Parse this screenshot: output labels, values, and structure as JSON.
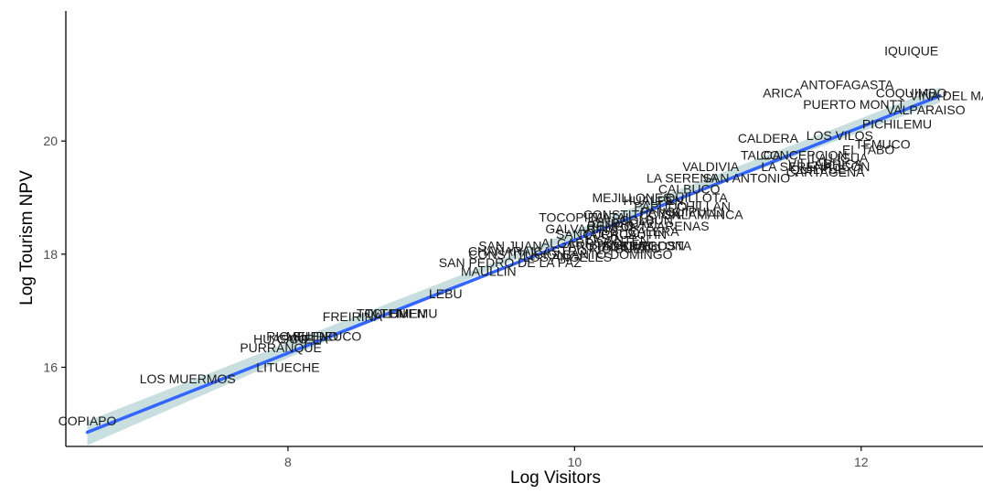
{
  "chart_data": {
    "type": "scatter",
    "xlabel": "Log Visitors",
    "ylabel": "Log Tourism NPV",
    "xlim": [
      6.45,
      12.85
    ],
    "ylim": [
      14.6,
      22.3
    ],
    "x_ticks": [
      8,
      10,
      12
    ],
    "y_ticks": [
      16,
      18,
      20
    ],
    "grid": false,
    "point_style": "text-labels",
    "points": [
      {
        "label": "IQUIQUE",
        "x": 12.35,
        "y": 21.6
      },
      {
        "label": "ANTOFAGASTA",
        "x": 11.9,
        "y": 21.0
      },
      {
        "label": "ARICA",
        "x": 11.45,
        "y": 20.85
      },
      {
        "label": "COQUIMBO",
        "x": 12.35,
        "y": 20.85
      },
      {
        "label": "VIÑA DEL MAR",
        "x": 12.65,
        "y": 20.8
      },
      {
        "label": "PUERTO MONTT",
        "x": 11.95,
        "y": 20.65
      },
      {
        "label": "VALPARAISO",
        "x": 12.45,
        "y": 20.55
      },
      {
        "label": "PICHILEMU",
        "x": 12.25,
        "y": 20.3
      },
      {
        "label": "CALDERA",
        "x": 11.35,
        "y": 20.05
      },
      {
        "label": "LOS VILOS",
        "x": 11.85,
        "y": 20.1
      },
      {
        "label": "TEMUCO",
        "x": 12.15,
        "y": 19.95
      },
      {
        "label": "EL TABO",
        "x": 12.05,
        "y": 19.85
      },
      {
        "label": "TALCA",
        "x": 11.3,
        "y": 19.75
      },
      {
        "label": "CONCEPCION",
        "x": 11.6,
        "y": 19.75
      },
      {
        "label": "LA LIGUA",
        "x": 11.85,
        "y": 19.7
      },
      {
        "label": "VILLARRICA",
        "x": 11.75,
        "y": 19.6
      },
      {
        "label": "LA SERENA",
        "x": 11.55,
        "y": 19.55
      },
      {
        "label": "VALDIVIA",
        "x": 10.95,
        "y": 19.55
      },
      {
        "label": "PUCON",
        "x": 11.9,
        "y": 19.55
      },
      {
        "label": "QUILPUE",
        "x": 11.7,
        "y": 19.5
      },
      {
        "label": "CARTAGENA",
        "x": 11.75,
        "y": 19.45
      },
      {
        "label": "LA SERENA",
        "x": 10.75,
        "y": 19.35
      },
      {
        "label": "SAN ANTONIO",
        "x": 11.2,
        "y": 19.35
      },
      {
        "label": "CALBUCO",
        "x": 10.8,
        "y": 19.15
      },
      {
        "label": "MEJILLONES",
        "x": 10.4,
        "y": 19.0
      },
      {
        "label": "HUALPEN",
        "x": 10.55,
        "y": 18.95
      },
      {
        "label": "QUILLOTA",
        "x": 10.85,
        "y": 19.0
      },
      {
        "label": "PAPUDO",
        "x": 10.6,
        "y": 18.85
      },
      {
        "label": "CHILLAN",
        "x": 10.9,
        "y": 18.85
      },
      {
        "label": "PANGUIPULLI",
        "x": 10.75,
        "y": 18.75
      },
      {
        "label": "CONSTITUCION",
        "x": 10.4,
        "y": 18.7
      },
      {
        "label": "SALAMANCA",
        "x": 10.9,
        "y": 18.7
      },
      {
        "label": "TOCOPILLA",
        "x": 10.0,
        "y": 18.65
      },
      {
        "label": "TALTAL",
        "x": 10.25,
        "y": 18.65
      },
      {
        "label": "COLBUN",
        "x": 10.5,
        "y": 18.6
      },
      {
        "label": "RENGO",
        "x": 10.25,
        "y": 18.5
      },
      {
        "label": "CURACAVI",
        "x": 10.35,
        "y": 18.55
      },
      {
        "label": "PUNTA ARENAS",
        "x": 10.6,
        "y": 18.5
      },
      {
        "label": "GALVARINO",
        "x": 10.05,
        "y": 18.45
      },
      {
        "label": "SANTA CRUZ",
        "x": 10.15,
        "y": 18.35
      },
      {
        "label": "CURACAUTIN",
        "x": 10.35,
        "y": 18.35
      },
      {
        "label": "CALERA",
        "x": 10.55,
        "y": 18.4
      },
      {
        "label": "LICANTEN",
        "x": 10.3,
        "y": 18.25
      },
      {
        "label": "SAN JUAN",
        "x": 9.55,
        "y": 18.15
      },
      {
        "label": "ALGARROBO",
        "x": 10.05,
        "y": 18.2
      },
      {
        "label": "FRUTILLAR",
        "x": 10.2,
        "y": 18.15
      },
      {
        "label": "ANCUD",
        "x": 10.35,
        "y": 18.15
      },
      {
        "label": "LOS LAGOS",
        "x": 10.45,
        "y": 18.15
      },
      {
        "label": "QUELLON",
        "x": 10.55,
        "y": 18.15
      },
      {
        "label": "RIO BUENO",
        "x": 10.35,
        "y": 18.1
      },
      {
        "label": "LA COSTA",
        "x": 10.6,
        "y": 18.15
      },
      {
        "label": "CHAÑARAL",
        "x": 9.5,
        "y": 18.05
      },
      {
        "label": "CONSTITUCION",
        "x": 9.6,
        "y": 18.0
      },
      {
        "label": "CASTRO",
        "x": 9.9,
        "y": 18.05
      },
      {
        "label": "LOS ANGELES",
        "x": 9.95,
        "y": 17.95
      },
      {
        "label": "SANTO DOMINGO",
        "x": 10.3,
        "y": 18.0
      },
      {
        "label": "SAN PEDRO DE LA PAZ",
        "x": 9.55,
        "y": 17.85
      },
      {
        "label": "MAULLIN",
        "x": 9.4,
        "y": 17.7
      },
      {
        "label": "LEBU",
        "x": 9.1,
        "y": 17.3
      },
      {
        "label": "TOLTEN",
        "x": 8.65,
        "y": 16.95
      },
      {
        "label": "TOLHUEN",
        "x": 8.75,
        "y": 16.95
      },
      {
        "label": "LUMEMU",
        "x": 8.85,
        "y": 16.95
      },
      {
        "label": "FREIRINA",
        "x": 8.45,
        "y": 16.9
      },
      {
        "label": "RIO BUENO",
        "x": 8.1,
        "y": 16.55
      },
      {
        "label": "MELIPEUCO",
        "x": 8.25,
        "y": 16.55
      },
      {
        "label": "HUASCO",
        "x": 7.95,
        "y": 16.5
      },
      {
        "label": "CANELA",
        "x": 8.1,
        "y": 16.5
      },
      {
        "label": "PURRANQUE",
        "x": 7.95,
        "y": 16.35
      },
      {
        "label": "LITUECHE",
        "x": 8.0,
        "y": 16.0
      },
      {
        "label": "LOS MUERMOS",
        "x": 7.3,
        "y": 15.8
      },
      {
        "label": "COPIAPO",
        "x": 6.6,
        "y": 15.05
      }
    ],
    "trend_line": {
      "x": [
        6.6,
        12.55
      ],
      "y": [
        14.85,
        20.8
      ]
    },
    "confidence_band": {
      "x": [
        6.6,
        9.5,
        12.55
      ],
      "lower": [
        14.62,
        17.82,
        20.68
      ],
      "upper": [
        15.05,
        17.92,
        20.95
      ]
    },
    "colors": {
      "line": "#3366ff",
      "band": "#9cc4c4",
      "text": "#1a1a1a",
      "axis": "#000000"
    }
  }
}
